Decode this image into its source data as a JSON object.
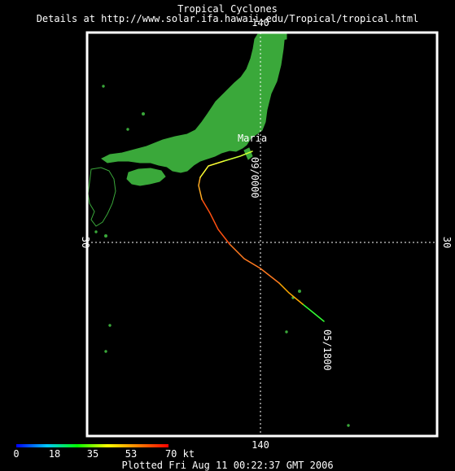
{
  "header": {
    "title": "Tropical Cyclones",
    "subtitle": "Details at http://www.solar.ifa.hawaii.edu/Tropical/tropical.html"
  },
  "map": {
    "lon_label": "140",
    "lat_label": "30",
    "land_color": "#3aa83a",
    "frame_color": "#ffffff"
  },
  "storm": {
    "name": "Maria",
    "start_label": "05/1800",
    "end_label": "09/0000"
  },
  "legend": {
    "ticks": [
      "0",
      "18",
      "35",
      "53",
      "70 kt"
    ],
    "colors": [
      "#0000ff",
      "#00c8ff",
      "#00ff00",
      "#ffff00",
      "#ff8000",
      "#ff0000"
    ]
  },
  "footer": {
    "plotted": "Plotted Fri Aug 11 00:22:37 GMT 2006"
  }
}
